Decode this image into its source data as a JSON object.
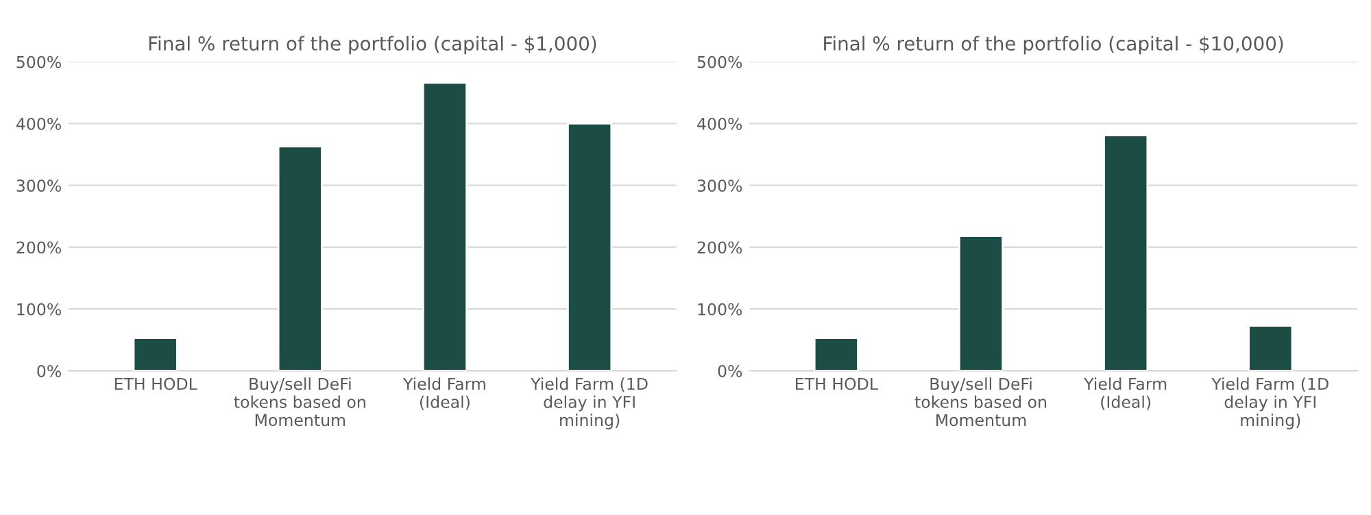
{
  "chart_data": [
    {
      "type": "bar",
      "title": "Final % return of the portfolio (capital - $1,000)",
      "categories": [
        "ETH HODL",
        "Buy/sell DeFi tokens based on Momentum",
        "Yield Farm (Ideal)",
        "Yield Farm (1D delay in YFI mining)"
      ],
      "values": [
        53,
        363,
        466,
        400
      ],
      "color": "#1b4d45",
      "ylim": [
        0,
        500
      ],
      "yticks": [
        {
          "value": 0,
          "label": "0%"
        },
        {
          "value": 100,
          "label": "100%"
        },
        {
          "value": 200,
          "label": "200%"
        },
        {
          "value": 300,
          "label": "300%"
        },
        {
          "value": 400,
          "label": "400%"
        },
        {
          "value": 500,
          "label": "500%"
        }
      ],
      "grid": "y"
    },
    {
      "type": "bar",
      "title": "Final % return of the portfolio (capital - $10,000)",
      "categories": [
        "ETH HODL",
        "Buy/sell DeFi tokens based on Momentum",
        "Yield Farm (Ideal)",
        "Yield Farm (1D delay in YFI mining)"
      ],
      "values": [
        53,
        218,
        381,
        73
      ],
      "color": "#1b4d45",
      "ylim": [
        0,
        500
      ],
      "yticks": [
        {
          "value": 0,
          "label": "0%"
        },
        {
          "value": 100,
          "label": "100%"
        },
        {
          "value": 200,
          "label": "200%"
        },
        {
          "value": 300,
          "label": "300%"
        },
        {
          "value": 400,
          "label": "400%"
        },
        {
          "value": 500,
          "label": "500%"
        }
      ],
      "grid": "y"
    }
  ]
}
